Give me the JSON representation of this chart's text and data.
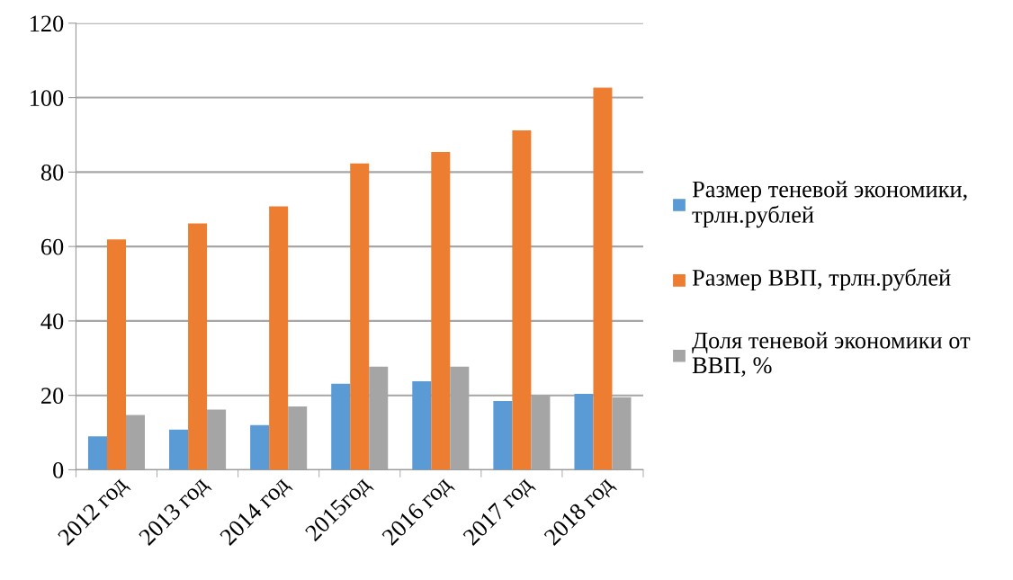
{
  "chart_data": {
    "type": "bar",
    "categories": [
      "2012 год",
      "2013 год",
      "2014 год",
      "2015год",
      "2016 год",
      "2017 год",
      "2018 год"
    ],
    "series": [
      {
        "name": "Размер теневой экономики, трлн.рублей",
        "color": "#5b9bd5",
        "values": [
          9.0,
          10.8,
          12.0,
          23.1,
          23.8,
          18.5,
          20.4
        ]
      },
      {
        "name": "Размер ВВП, трлн.рублей",
        "color": "#ed7d31",
        "values": [
          61.9,
          66.2,
          70.8,
          82.3,
          85.4,
          91.2,
          102.7
        ]
      },
      {
        "name": "Доля теневой экономики от ВВП, %",
        "color": "#a5a5a5",
        "values": [
          14.7,
          16.2,
          17.0,
          27.7,
          27.7,
          20.0,
          19.5
        ]
      }
    ],
    "ylim": [
      0,
      120
    ],
    "yticks": [
      0,
      20,
      40,
      60,
      80,
      100,
      120
    ],
    "grid": "y",
    "legend": "right"
  }
}
